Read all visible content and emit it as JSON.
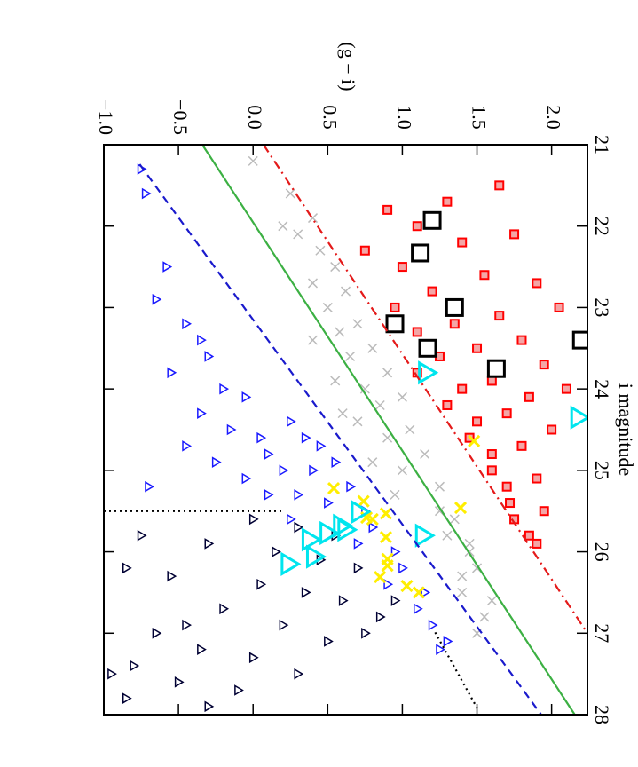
{
  "chart_data": {
    "type": "scatter",
    "x_label": "i magnitude",
    "y_label": "(g − i)",
    "xlim": [
      21,
      28
    ],
    "xticks": [
      21,
      22,
      23,
      24,
      25,
      26,
      27,
      28
    ],
    "ylim": [
      -1.0,
      2.24
    ],
    "yticks": [
      {
        "value": -1.0,
        "label": "−1.0"
      },
      {
        "value": -0.5,
        "label": "−0.5"
      },
      {
        "value": 0.0,
        "label": "0.0"
      },
      {
        "value": 0.5,
        "label": "0.5"
      },
      {
        "value": 1.0,
        "label": "1.0"
      },
      {
        "value": 1.5,
        "label": "1.5"
      },
      {
        "value": 2.0,
        "label": "2.0"
      }
    ],
    "series": [
      {
        "marker": "x",
        "color": "#bbbbbb",
        "x": [
          21.6,
          21.9,
          22.1,
          22.3,
          22.5,
          22.7,
          22.8,
          23.0,
          23.2,
          23.3,
          23.5,
          23.6,
          23.8,
          23.9,
          24.0,
          24.1,
          24.2,
          24.4,
          24.5,
          24.6,
          24.8,
          24.9,
          25.0,
          25.2,
          25.3,
          25.5,
          25.6,
          25.8,
          25.9,
          26.0,
          26.2,
          26.3,
          26.5,
          26.6,
          26.8,
          27.0,
          23.4,
          24.3,
          22.0,
          21.2
        ],
        "values": [
          0.25,
          0.4,
          0.3,
          0.45,
          0.55,
          0.4,
          0.62,
          0.5,
          0.7,
          0.58,
          0.8,
          0.65,
          0.9,
          0.55,
          0.75,
          1.0,
          0.85,
          0.7,
          1.05,
          0.9,
          1.15,
          0.8,
          1.0,
          1.25,
          0.95,
          1.25,
          1.35,
          1.3,
          1.45,
          1.45,
          1.5,
          1.4,
          1.4,
          1.6,
          1.55,
          1.5,
          0.4,
          0.6,
          0.2,
          0.0
        ]
      },
      {
        "marker": "square",
        "color": "#ff0000",
        "fill": "#f4a6a6",
        "x": [
          21.7,
          21.8,
          22.0,
          22.1,
          22.2,
          22.3,
          22.5,
          22.6,
          22.7,
          22.8,
          23.0,
          23.1,
          23.2,
          23.3,
          23.4,
          23.5,
          23.6,
          23.7,
          23.8,
          23.9,
          24.0,
          24.1,
          24.2,
          24.3,
          24.4,
          24.5,
          24.6,
          24.7,
          24.8,
          25.0,
          25.1,
          25.2,
          25.4,
          25.5,
          25.6,
          25.8,
          25.9,
          21.5,
          23.0,
          24.0
        ],
        "values": [
          1.3,
          0.9,
          1.1,
          1.75,
          1.4,
          0.75,
          1.0,
          1.55,
          1.9,
          1.2,
          0.95,
          1.65,
          1.35,
          1.1,
          1.8,
          1.5,
          1.25,
          1.95,
          1.1,
          1.6,
          1.4,
          1.85,
          1.3,
          1.7,
          1.5,
          2.0,
          1.45,
          1.8,
          1.6,
          1.6,
          1.9,
          1.7,
          1.72,
          1.95,
          1.75,
          1.85,
          1.9,
          1.65,
          2.05,
          2.1
        ]
      },
      {
        "marker": "triangle",
        "color": "#1a1aff",
        "x": [
          21.3,
          21.6,
          22.5,
          22.9,
          23.2,
          23.4,
          23.6,
          23.8,
          24.0,
          24.1,
          24.3,
          24.5,
          24.6,
          24.7,
          24.8,
          24.9,
          25.0,
          25.1,
          25.2,
          25.3,
          24.4,
          24.6,
          24.7,
          24.9,
          25.0,
          25.2,
          25.4,
          25.5,
          25.7,
          25.9,
          26.0,
          26.2,
          26.4,
          26.5,
          26.7,
          26.9,
          27.1,
          27.2,
          25.3,
          25.6
        ],
        "values": [
          -0.75,
          -0.72,
          -0.58,
          -0.65,
          -0.45,
          -0.35,
          -0.3,
          -0.55,
          -0.2,
          -0.05,
          -0.35,
          -0.15,
          0.05,
          -0.45,
          0.1,
          -0.25,
          0.2,
          -0.05,
          -0.7,
          0.1,
          0.25,
          0.35,
          0.45,
          0.55,
          0.4,
          0.65,
          0.5,
          0.75,
          0.8,
          0.7,
          0.95,
          1.0,
          0.9,
          1.15,
          1.1,
          1.2,
          1.3,
          1.25,
          0.3,
          0.25
        ]
      },
      {
        "marker": "triangle",
        "color": "#000033",
        "x": [
          25.6,
          25.7,
          25.8,
          25.9,
          26.0,
          26.1,
          26.2,
          26.3,
          26.4,
          26.5,
          26.6,
          26.7,
          26.8,
          26.9,
          27.0,
          27.1,
          27.2,
          27.3,
          27.4,
          27.5,
          27.6,
          27.7,
          27.8,
          27.9,
          25.8,
          26.2,
          26.6,
          27.0,
          27.5,
          26.9
        ],
        "values": [
          0.0,
          0.3,
          0.55,
          -0.3,
          0.15,
          0.45,
          0.7,
          -0.55,
          0.05,
          0.35,
          0.6,
          -0.2,
          0.85,
          0.2,
          -0.65,
          0.5,
          -0.35,
          0.0,
          -0.8,
          0.3,
          -0.5,
          -0.1,
          -0.85,
          -0.3,
          -0.75,
          -0.85,
          0.95,
          0.75,
          -0.95,
          -0.45
        ]
      },
      {
        "marker": "x",
        "color": "#ffee00",
        "x": [
          24.64,
          25.22,
          25.38,
          25.58,
          25.53,
          25.46,
          25.82,
          26.09,
          26.17,
          26.31,
          26.42,
          26.5,
          25.6
        ],
        "values": [
          1.48,
          0.54,
          0.74,
          0.76,
          0.89,
          1.39,
          0.89,
          0.9,
          0.9,
          0.85,
          1.03,
          1.11,
          0.8
        ]
      },
      {
        "marker": "triangle",
        "color": "#00e5ee",
        "x": [
          23.8,
          24.35,
          25.8,
          25.51,
          25.73,
          25.68,
          25.85,
          26.06,
          26.15,
          25.77
        ],
        "values": [
          1.16,
          2.18,
          1.14,
          0.71,
          0.62,
          0.59,
          0.38,
          0.41,
          0.24,
          0.5
        ]
      },
      {
        "marker": "square",
        "color": "#000000",
        "x": [
          21.93,
          22.33,
          23.0,
          23.2,
          23.5,
          23.4,
          23.75
        ],
        "values": [
          1.2,
          1.12,
          1.35,
          0.95,
          1.17,
          2.2,
          1.63
        ]
      }
    ],
    "lines": [
      {
        "color": "#e41a1a",
        "dash": "dashdot",
        "x": [
          21,
          27.0
        ],
        "values": [
          0.07,
          2.24
        ]
      },
      {
        "color": "#3cb043",
        "dash": "solid",
        "x": [
          21,
          28
        ],
        "values": [
          -0.34,
          2.155
        ]
      },
      {
        "color": "#1a1acc",
        "dash": "dashed",
        "x": [
          21.24,
          28
        ],
        "values": [
          -0.76,
          1.93
        ]
      },
      {
        "color": "#000000",
        "dash": "dotted",
        "x": [
          25.5,
          25.5
        ],
        "values": [
          -1.0,
          0.2
        ]
      },
      {
        "color": "#000000",
        "dash": "dotted",
        "x": [
          26.99,
          27.95
        ],
        "values": [
          1.22,
          1.51
        ]
      }
    ]
  }
}
